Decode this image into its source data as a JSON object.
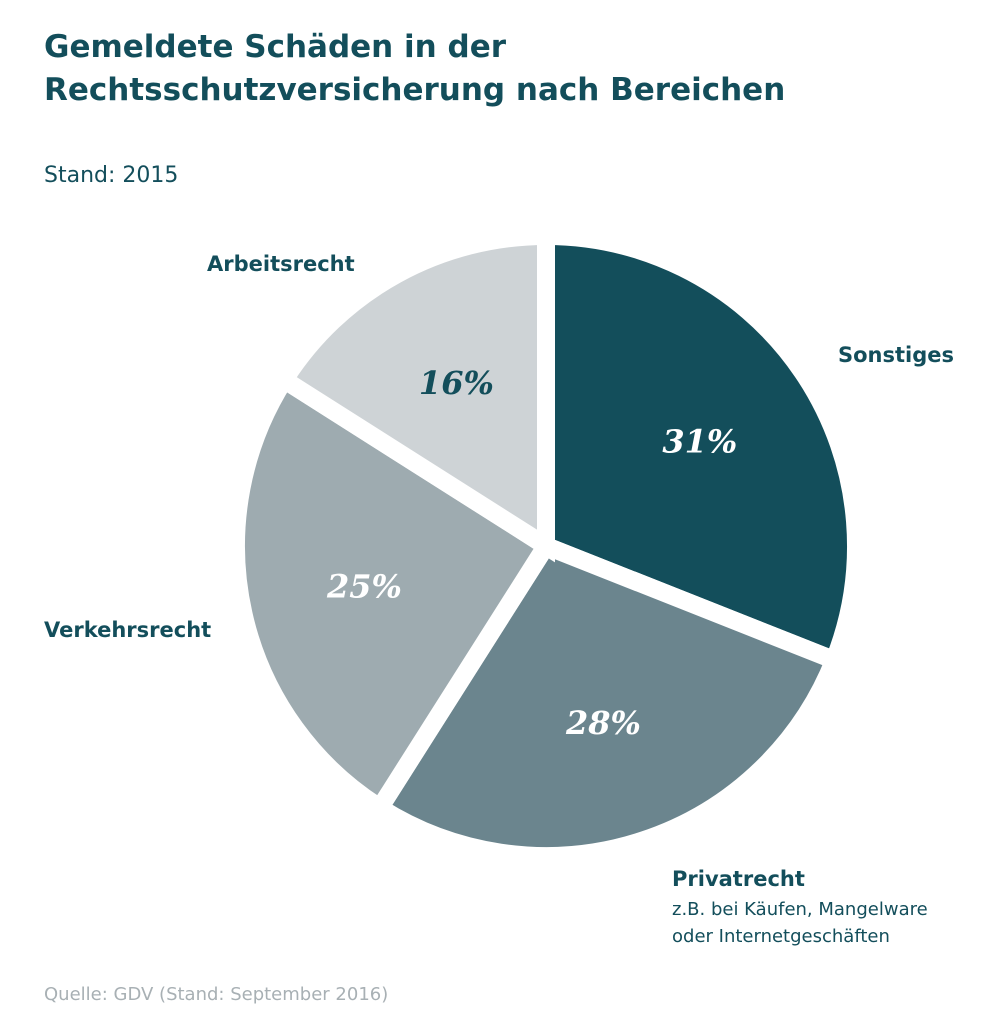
{
  "header": {
    "title": "Gemeldete Schäden in der Rechtsschutzversicherung nach Bereichen",
    "subtitle": "Stand: 2015"
  },
  "footer": {
    "source": "Quelle: GDV (Stand: September 2016)"
  },
  "chart_data": {
    "type": "pie",
    "title": "Gemeldete Schäden in der Rechtsschutzversicherung nach Bereichen",
    "subtitle": "Stand: 2015",
    "unit": "%",
    "slices": [
      {
        "label": "Sonstiges",
        "value": 31,
        "value_label": "31%",
        "note": [],
        "color": "#134e5b",
        "text_color": "#ffffff"
      },
      {
        "label": "Privatrecht",
        "value": 28,
        "value_label": "28%",
        "note": [
          "z.B. bei Käufen, Mangelware",
          "oder Internetgeschäften"
        ],
        "color": "#6b858e",
        "text_color": "#ffffff"
      },
      {
        "label": "Verkehrsrecht",
        "value": 25,
        "value_label": "25%",
        "note": [],
        "color": "#9eabb0",
        "text_color": "#ffffff"
      },
      {
        "label": "Arbeitsrecht",
        "value": 16,
        "value_label": "16%",
        "note": [],
        "color": "#ced3d6",
        "text_color": "#134e5b"
      }
    ],
    "start": "12 o'clock",
    "direction": "clockwise",
    "exploded": true,
    "legend": "none"
  }
}
